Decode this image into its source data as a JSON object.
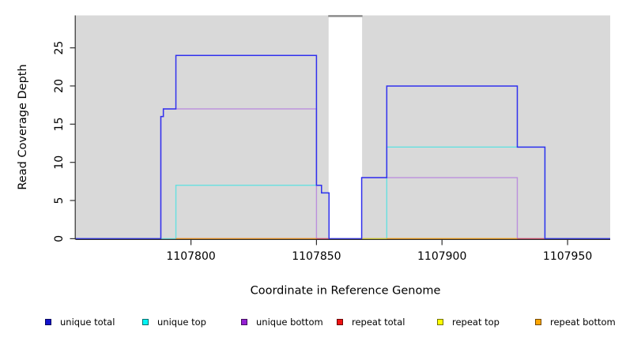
{
  "chart_data": {
    "type": "line",
    "subtype": "step-coverage",
    "title": "",
    "xlabel": "Coordinate in Reference Genome",
    "ylabel": "Read Coverage Depth",
    "x_tick_labels": [
      "1107800",
      "1107850",
      "1107900",
      "1107950"
    ],
    "x_tick_values": [
      1107800,
      1107850,
      1107900,
      1107950
    ],
    "y_tick_labels": [
      "0",
      "5",
      "10",
      "15",
      "20",
      "25"
    ],
    "y_tick_values": [
      0,
      5,
      10,
      15,
      20,
      25
    ],
    "xlim": [
      1107754,
      1107967
    ],
    "ylim": [
      0,
      29.25
    ],
    "grid": false,
    "panel_bg": "#d9d9d9",
    "gap_region": {
      "from": 1107855,
      "to": 1107868,
      "fill": "#ffffff",
      "top_bar_color": "#858585"
    },
    "series": [
      {
        "name": "unique bottom",
        "color": "#BB8FDD",
        "points": [
          [
            1107754,
            0
          ],
          [
            1107788,
            16
          ],
          [
            1107789,
            17
          ],
          [
            1107850,
            0
          ],
          [
            1107868,
            8
          ],
          [
            1107930,
            0
          ],
          [
            1107967,
            0
          ]
        ]
      },
      {
        "name": "unique top",
        "color": "#66E0E0",
        "points": [
          [
            1107754,
            0
          ],
          [
            1107794,
            7
          ],
          [
            1107852,
            6
          ],
          [
            1107855,
            0
          ],
          [
            1107878,
            12
          ],
          [
            1107941,
            0
          ],
          [
            1107967,
            0
          ]
        ]
      },
      {
        "name": "repeat total",
        "color": "#E34F6B",
        "points": [
          [
            1107794,
            0
          ],
          [
            1107941,
            0
          ]
        ]
      },
      {
        "name": "repeat top",
        "color": "#EDED2E",
        "points": [
          [
            1107868,
            0
          ],
          [
            1107930,
            0
          ]
        ]
      },
      {
        "name": "repeat bottom",
        "color": "#FFA318",
        "segmented": true,
        "points": [
          [
            [
              1107794,
              0
            ],
            [
              1107850,
              0
            ]
          ],
          [
            [
              1107878,
              0
            ],
            [
              1107930,
              0
            ]
          ]
        ]
      },
      {
        "name": "unique total",
        "color": "#3030EE",
        "over_gap": true,
        "points": [
          [
            1107754,
            0
          ],
          [
            1107788,
            16
          ],
          [
            1107789,
            17
          ],
          [
            1107794,
            24
          ],
          [
            1107850,
            7
          ],
          [
            1107852,
            6
          ],
          [
            1107855,
            0
          ],
          [
            1107868,
            8
          ],
          [
            1107878,
            20
          ],
          [
            1107930,
            12
          ],
          [
            1107941,
            0
          ],
          [
            1107967,
            0
          ]
        ]
      }
    ]
  },
  "legend": {
    "items": [
      {
        "label": "unique total",
        "color": "#1212CC"
      },
      {
        "label": "unique top",
        "color": "#00F5F5"
      },
      {
        "label": "unique bottom",
        "color": "#9420D2"
      },
      {
        "label": "repeat total",
        "color": "#EE1111"
      },
      {
        "label": "repeat top",
        "color": "#FFFF00"
      },
      {
        "label": "repeat bottom",
        "color": "#FFA500"
      }
    ]
  }
}
